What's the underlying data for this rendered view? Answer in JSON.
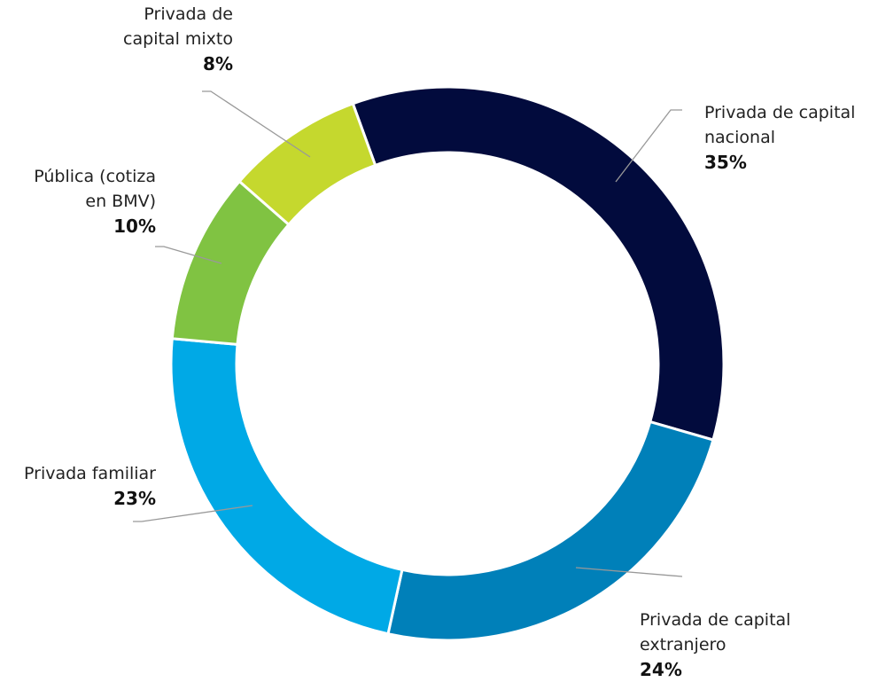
{
  "chart_data": {
    "type": "donut",
    "categories": [
      "Privada de capital nacional",
      "Privada de capital extranjero",
      "Privada familiar",
      "Pública (cotiza en BMV)",
      "Privada de capital mixto"
    ],
    "values": [
      35,
      24,
      23,
      10,
      8
    ],
    "value_labels": [
      "35%",
      "24%",
      "23%",
      "10%",
      "8%"
    ],
    "colors": [
      "#020b3d",
      "#0080b9",
      "#00a9e6",
      "#80c342",
      "#c5d82e"
    ]
  }
}
